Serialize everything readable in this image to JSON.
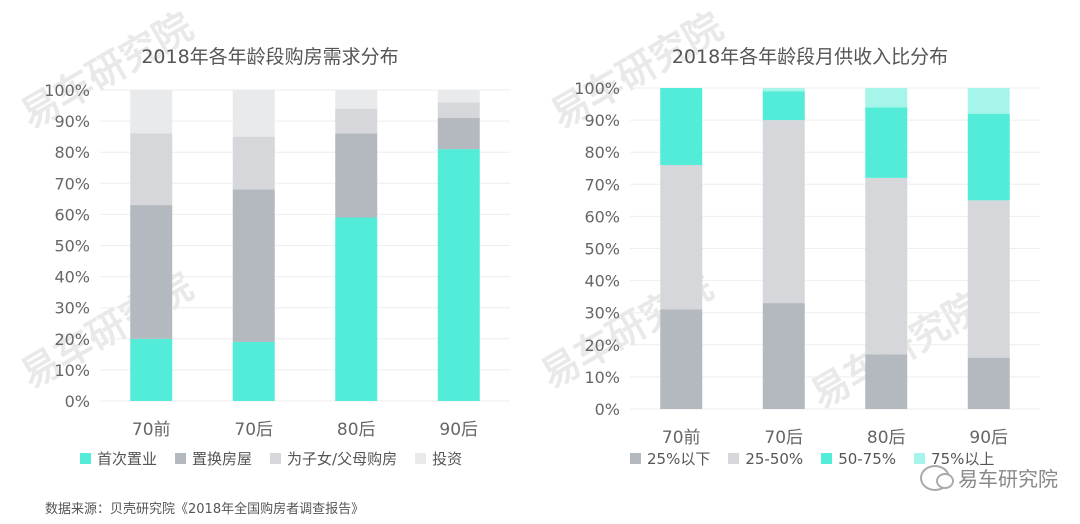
{
  "chart_data": [
    {
      "type": "bar",
      "stacked": true,
      "title": "2018年各年龄段购房需求分布",
      "categories": [
        "70前",
        "70后",
        "80后",
        "90后"
      ],
      "ylim": [
        0,
        100
      ],
      "yticks": [
        "0%",
        "10%",
        "20%",
        "30%",
        "40%",
        "50%",
        "60%",
        "70%",
        "80%",
        "90%",
        "100%"
      ],
      "grid": true,
      "legend_position": "bottom",
      "series": [
        {
          "name": "首次置业",
          "color": "#52ecd8",
          "values": [
            20,
            19,
            59,
            81
          ]
        },
        {
          "name": "置换房屋",
          "color": "#b4b9bf",
          "values": [
            43,
            49,
            27,
            10
          ]
        },
        {
          "name": "为子女/父母购房",
          "color": "#d5d7da",
          "values": [
            23,
            17,
            8,
            5
          ]
        },
        {
          "name": "投资",
          "color": "#e9eaec",
          "values": [
            14,
            15,
            6,
            4
          ]
        }
      ]
    },
    {
      "type": "bar",
      "stacked": true,
      "title": "2018年各年龄段月供收入比分布",
      "categories": [
        "70前",
        "70后",
        "80后",
        "90后"
      ],
      "ylim": [
        0,
        100
      ],
      "yticks": [
        "0%",
        "10%",
        "20%",
        "30%",
        "40%",
        "50%",
        "60%",
        "70%",
        "80%",
        "90%",
        "100%"
      ],
      "grid": true,
      "legend_position": "bottom",
      "series": [
        {
          "name": "25%以下",
          "color": "#b4b9bf",
          "values": [
            31,
            33,
            17,
            16
          ]
        },
        {
          "name": "25-50%",
          "color": "#d5d7da",
          "values": [
            45,
            57,
            55,
            49
          ]
        },
        {
          "name": "50-75%",
          "color": "#52ecd8",
          "values": [
            24,
            9,
            22,
            27
          ]
        },
        {
          "name": "75%以上",
          "color": "#a6f5ea",
          "values": [
            0,
            1,
            6,
            8
          ]
        }
      ]
    }
  ],
  "footer": {
    "source": "数据来源：贝壳研究院《2018年全国购房者调查报告》",
    "brand": "易车研究院"
  },
  "watermark": "易车研究院"
}
